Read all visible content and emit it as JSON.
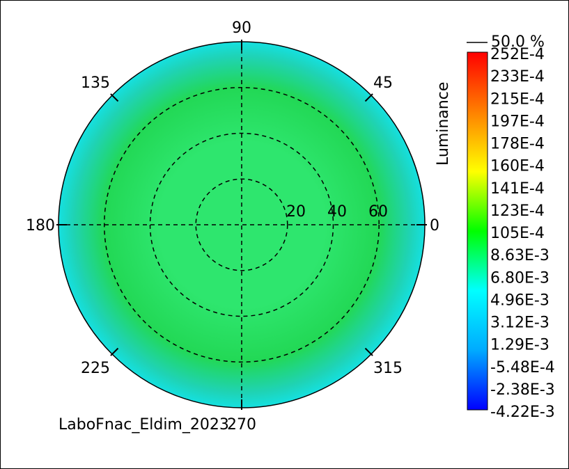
{
  "chart_data": {
    "type": "heatmap",
    "projection": "polar",
    "footer_text": "LaboFnac_Eldim_2023",
    "azimuth_labels": [
      "0",
      "45",
      "90",
      "135",
      "180",
      "225",
      "270",
      "315"
    ],
    "radial_rings": [
      20,
      40,
      60
    ],
    "radial_labels": [
      "20",
      "40",
      "60"
    ],
    "radial_max": 80,
    "grid": true,
    "colorbar": {
      "title": "Luminance",
      "top_label": "50.0 %",
      "tick_labels": [
        "252E-4",
        "233E-4",
        "215E-4",
        "197E-4",
        "178E-4",
        "160E-4",
        "141E-4",
        "123E-4",
        "105E-4",
        "8.63E-3",
        "6.80E-3",
        "4.96E-3",
        "3.12E-3",
        "1.29E-3",
        "-5.48E-4",
        "-2.38E-3",
        "-4.22E-3"
      ],
      "values": [
        0.0252,
        0.0233,
        0.0215,
        0.0197,
        0.0178,
        0.016,
        0.0141,
        0.0123,
        0.0105,
        0.00863,
        0.0068,
        0.00496,
        0.00312,
        0.00129,
        -0.000548,
        -0.00238,
        -0.00422
      ],
      "min": -0.00422,
      "max": 0.0252,
      "colormap": [
        "#0000ff",
        "#00aaff",
        "#00ffff",
        "#00ff00",
        "#ffff00",
        "#ff8000",
        "#ff0000"
      ]
    },
    "field": {
      "center_value": 0.0085,
      "ring_value": 0.0088,
      "edge_value": 0.0045,
      "colors": {
        "center": "#2ee66e",
        "mid": "#22d855",
        "edge": "#1fd3b5",
        "rim": "#15e0e0"
      }
    }
  }
}
